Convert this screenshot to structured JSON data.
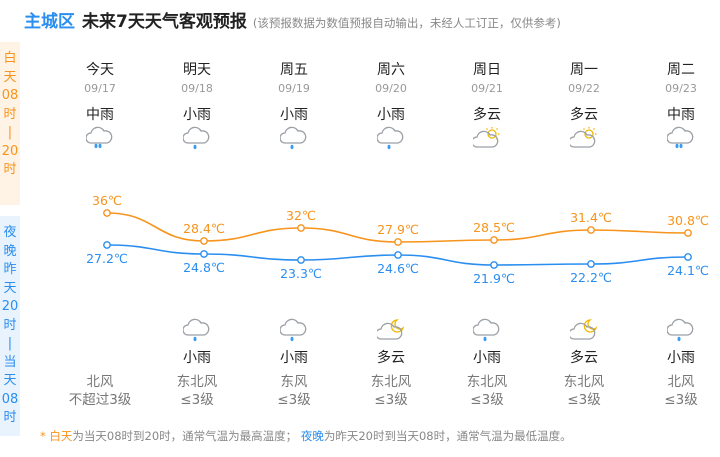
{
  "header": {
    "district": "主城区",
    "title": "未来7天天气客观预报",
    "note": "(该预报数据为数值预报自动输出，未经人工订正，仅供参考)"
  },
  "sidebar": {
    "day_label": [
      "白",
      "天",
      "08",
      "时",
      "|",
      "20",
      "时"
    ],
    "night_label": [
      "夜",
      "晚",
      "昨",
      "天",
      "20",
      "时",
      "|",
      "当",
      "天",
      "08",
      "时"
    ]
  },
  "days": [
    {
      "name": "今天",
      "date": "09/17",
      "day_cond": "中雨",
      "day_icon": "moderate-rain-icon",
      "high": "36℃",
      "low": "27.2℃",
      "night_icon": "",
      "night_cond": "",
      "wind_dir": "北风",
      "wind_level": "不超过3级"
    },
    {
      "name": "明天",
      "date": "09/18",
      "day_cond": "小雨",
      "day_icon": "light-rain-icon",
      "high": "28.4℃",
      "low": "24.8℃",
      "night_icon": "light-rain-icon",
      "night_cond": "小雨",
      "wind_dir": "东北风",
      "wind_level": "≤3级"
    },
    {
      "name": "周五",
      "date": "09/19",
      "day_cond": "小雨",
      "day_icon": "light-rain-icon",
      "high": "32℃",
      "low": "23.3℃",
      "night_icon": "light-rain-icon",
      "night_cond": "小雨",
      "wind_dir": "东风",
      "wind_level": "≤3级"
    },
    {
      "name": "周六",
      "date": "09/20",
      "day_cond": "小雨",
      "day_icon": "light-rain-icon",
      "high": "27.9℃",
      "low": "24.6℃",
      "night_icon": "partly-cloudy-night-icon",
      "night_cond": "多云",
      "wind_dir": "东北风",
      "wind_level": "≤3级"
    },
    {
      "name": "周日",
      "date": "09/21",
      "day_cond": "多云",
      "day_icon": "partly-cloudy-day-icon",
      "high": "28.5℃",
      "low": "21.9℃",
      "night_icon": "light-rain-icon",
      "night_cond": "小雨",
      "wind_dir": "东北风",
      "wind_level": "≤3级"
    },
    {
      "name": "周一",
      "date": "09/22",
      "day_cond": "多云",
      "day_icon": "partly-cloudy-day-icon",
      "high": "31.4℃",
      "low": "22.2℃",
      "night_icon": "partly-cloudy-night-icon",
      "night_cond": "多云",
      "wind_dir": "东北风",
      "wind_level": "≤3级"
    },
    {
      "name": "周二",
      "date": "09/23",
      "day_cond": "中雨",
      "day_icon": "moderate-rain-icon",
      "high": "30.8℃",
      "low": "24.1℃",
      "night_icon": "light-rain-icon",
      "night_cond": "小雨",
      "wind_dir": "北风",
      "wind_level": "≤3级"
    }
  ],
  "footer": {
    "bullet": "*",
    "day_term": "白天",
    "day_desc": "为当天08时到20时，通常气温为最高温度；",
    "night_term": "夜晚",
    "night_desc": "为昨天20时到当天08时，通常气温为最低温度。"
  },
  "colors": {
    "accent_blue": "#2a8ef0",
    "accent_orange": "#f7941d",
    "day_band_bg": "#fff3e6",
    "night_band_bg": "#e9f3fd"
  },
  "chart_data": {
    "type": "line",
    "x": [
      "09/17",
      "09/18",
      "09/19",
      "09/20",
      "09/21",
      "09/22",
      "09/23"
    ],
    "series": [
      {
        "values": [
          36,
          28.4,
          32,
          27.9,
          28.5,
          31.4,
          30.8
        ],
        "color": "#f7941d"
      },
      {
        "values": [
          27.2,
          24.8,
          23.3,
          24.6,
          21.9,
          22.2,
          24.1
        ],
        "color": "#2a8ef0"
      }
    ]
  }
}
